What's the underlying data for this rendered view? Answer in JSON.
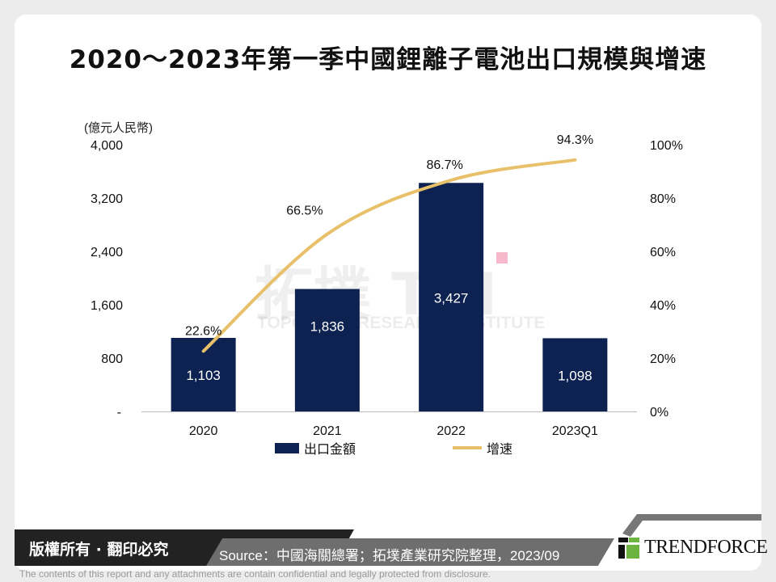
{
  "title": "2020～2023年第一季中國鋰離子電池出口規模與增速",
  "chart_data": {
    "type": "bar+line",
    "title": "2020～2023年第一季中國鋰離子電池出口規模與增速",
    "y_unit": "(億元人民幣)",
    "categories": [
      "2020",
      "2021",
      "2022",
      "2023Q1"
    ],
    "left_axis": {
      "ylim": [
        0,
        4000
      ],
      "ticks": [
        0,
        800,
        1600,
        2400,
        3200,
        4000
      ],
      "tick_labels": [
        "-",
        "800",
        "1,600",
        "2,400",
        "3,200",
        "4,000"
      ]
    },
    "right_axis": {
      "ylim": [
        0,
        100
      ],
      "ticks": [
        0,
        20,
        40,
        60,
        80,
        100
      ],
      "tick_labels": [
        "0%",
        "20%",
        "40%",
        "60%",
        "80%",
        "100%"
      ]
    },
    "series": [
      {
        "name": "出口金額",
        "type": "bar",
        "axis": "left",
        "color": "#0d2250",
        "values": [
          1103,
          1836,
          3427,
          1098
        ],
        "labels": [
          "1,103",
          "1,836",
          "3,427",
          "1,098"
        ]
      },
      {
        "name": "增速",
        "type": "line",
        "axis": "right",
        "color": "#e8c06a",
        "values": [
          22.6,
          66.5,
          86.7,
          94.3
        ],
        "labels": [
          "22.6%",
          "66.5%",
          "86.7%",
          "94.3%"
        ]
      }
    ],
    "legend": "bottom",
    "grid": false
  },
  "watermark": {
    "cn": "拓墣",
    "en": "TOPOLOGY RESEARCH INSTITUTE",
    "mark": "TRI"
  },
  "footer": {
    "copyright": "版權所有 · 翻印必究",
    "source": "Source：中國海關總署；拓墣產業研究院整理，2023/09",
    "logo": "TRENDFORCE",
    "disclaimer": "The contents of this report and any attachments are contain confidential and legally protected from disclosure."
  }
}
